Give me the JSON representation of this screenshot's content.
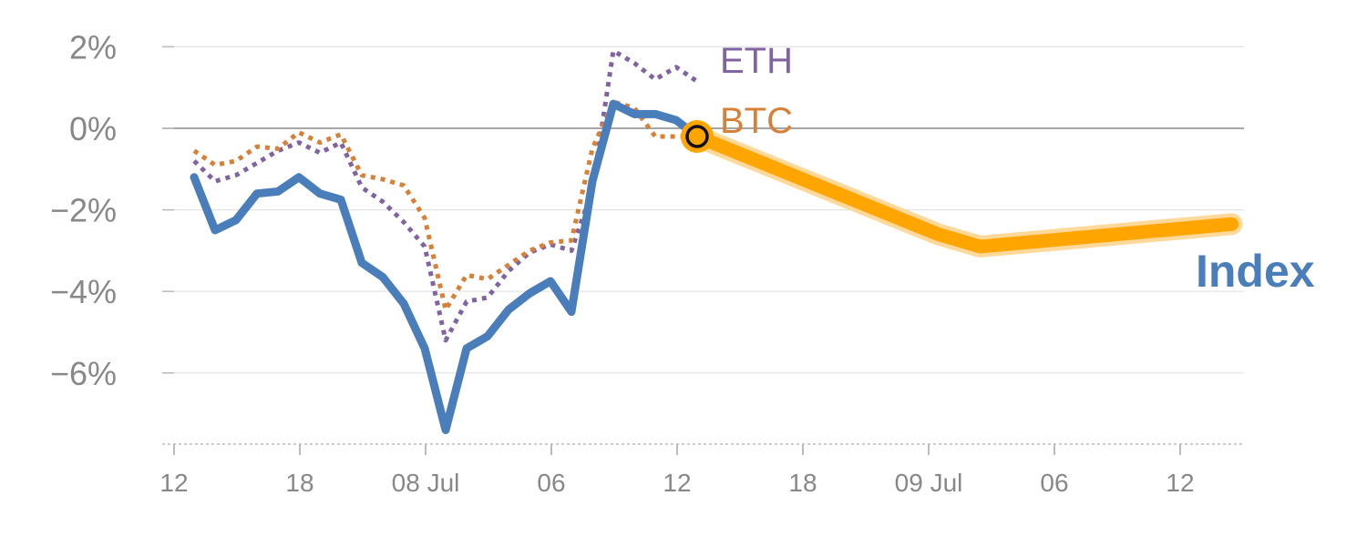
{
  "chart_data": {
    "type": "line",
    "x_ticks": [
      "12",
      "18",
      "08 Jul",
      "06",
      "12",
      "18",
      "09 Jul",
      "06",
      "12"
    ],
    "y_ticks": [
      "2%",
      "0%",
      "−2%",
      "−4%",
      "−6%"
    ],
    "ylim": [
      -7.8,
      2.4
    ],
    "y_tick_values": [
      2,
      0,
      -2,
      -4,
      -6
    ],
    "grid": true,
    "series": [
      {
        "name": "Index",
        "color": "#4a7ebb",
        "style": "solid",
        "values": [
          -1.2,
          -2.5,
          -2.25,
          -1.6,
          -1.55,
          -1.2,
          -1.6,
          -1.75,
          -3.3,
          -3.65,
          -4.3,
          -5.4,
          -7.4,
          -5.4,
          -5.1,
          -4.45,
          -4.05,
          -3.75,
          -4.5,
          -1.3,
          0.6,
          0.35,
          0.35,
          0.2,
          -0.2
        ]
      },
      {
        "name": "ETH",
        "color": "#8064a2",
        "style": "dotted",
        "values": [
          -0.8,
          -1.3,
          -1.15,
          -0.85,
          -0.55,
          -0.35,
          -0.6,
          -0.35,
          -1.45,
          -1.8,
          -2.3,
          -2.9,
          -5.2,
          -4.25,
          -4.15,
          -3.5,
          -3.05,
          -2.85,
          -3.0,
          -1.5,
          1.9,
          1.6,
          1.2,
          1.5,
          1.15
        ]
      },
      {
        "name": "BTC",
        "color": "#d88035",
        "style": "dotted",
        "values": [
          -0.55,
          -0.9,
          -0.8,
          -0.45,
          -0.5,
          -0.1,
          -0.35,
          -0.15,
          -1.15,
          -1.25,
          -1.4,
          -2.2,
          -4.45,
          -3.6,
          -3.7,
          -3.35,
          -3.0,
          -2.8,
          -2.75,
          -0.5,
          0.65,
          0.5,
          -0.2,
          -0.2,
          -0.2
        ]
      }
    ],
    "forecast": {
      "color": "#ffa500",
      "points": [
        [
          24,
          -0.2
        ],
        [
          35.5,
          -2.6
        ],
        [
          37.5,
          -2.9
        ],
        [
          49.5,
          -2.35
        ]
      ]
    },
    "marker": {
      "index": 24,
      "value": -0.2
    },
    "labels": {
      "eth": "ETH",
      "btc": "BTC",
      "index": "Index"
    }
  }
}
